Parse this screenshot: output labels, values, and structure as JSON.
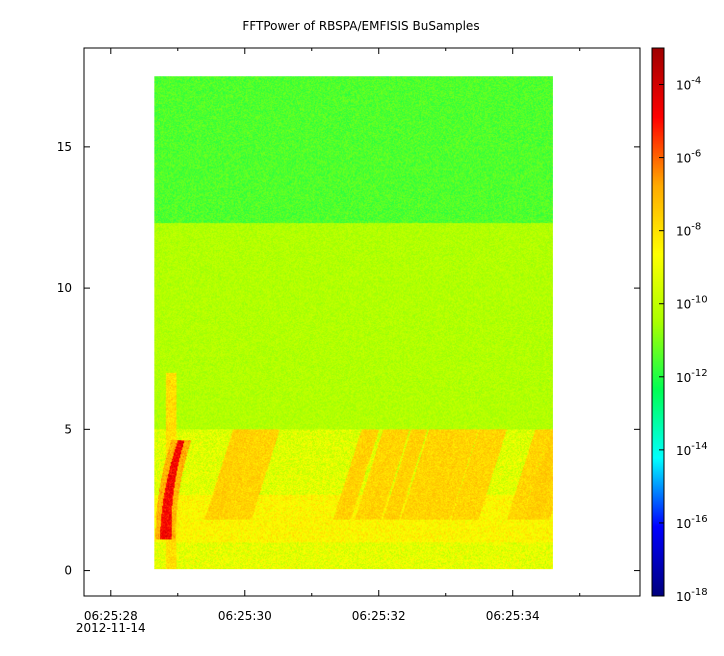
{
  "chart_data": {
    "type": "heatmap",
    "title": "FFTPower of RBSPA/EMFISIS  BuSamples",
    "xlabel": "",
    "ylabel": "",
    "x_ticks": [
      {
        "time": "06:25:28",
        "date": "2012-11-14"
      },
      {
        "time": "06:25:30",
        "date": ""
      },
      {
        "time": "06:25:32",
        "date": ""
      },
      {
        "time": "06:25:34",
        "date": ""
      }
    ],
    "x_minor_step_seconds": 1,
    "xlim": [
      "06:25:27.6",
      "06:25:35.9"
    ],
    "y_ticks": [
      0,
      5,
      10,
      15
    ],
    "ylim": [
      -0.9,
      18.5
    ],
    "data_extent": {
      "x_start": "06:25:28.65",
      "x_end": "06:25:34.60",
      "y_start": 0.05,
      "y_end": 17.5
    },
    "colorbar": {
      "scale": "log",
      "range": [
        1e-18,
        0.001
      ],
      "tick_exponents": [
        -4,
        -6,
        -8,
        -10,
        -12,
        -14,
        -16,
        -18
      ],
      "tick_base": "10",
      "colors": [
        "#00007f",
        "#0000ff",
        "#00ffff",
        "#00ff55",
        "#aaff00",
        "#ffff00",
        "#ffaa00",
        "#ff0000",
        "#a00000"
      ]
    },
    "features": [
      {
        "name": "upper-band",
        "freq_range": [
          12.3,
          17.5
        ],
        "log10_power": -11.5
      },
      {
        "name": "middle-band",
        "freq_range": [
          5.0,
          12.3
        ],
        "log10_power": -10.3
      },
      {
        "name": "low-band",
        "freq_range": [
          1.0,
          2.7
        ],
        "log10_power": -8.5
      },
      {
        "name": "initial-burst",
        "time": "06:25:28.9",
        "freq_range": [
          1.2,
          4.5
        ],
        "log10_power": -5.0
      },
      {
        "name": "rising-tones",
        "freq_range": [
          2.0,
          5.0
        ],
        "log10_power": -8.0
      }
    ]
  }
}
